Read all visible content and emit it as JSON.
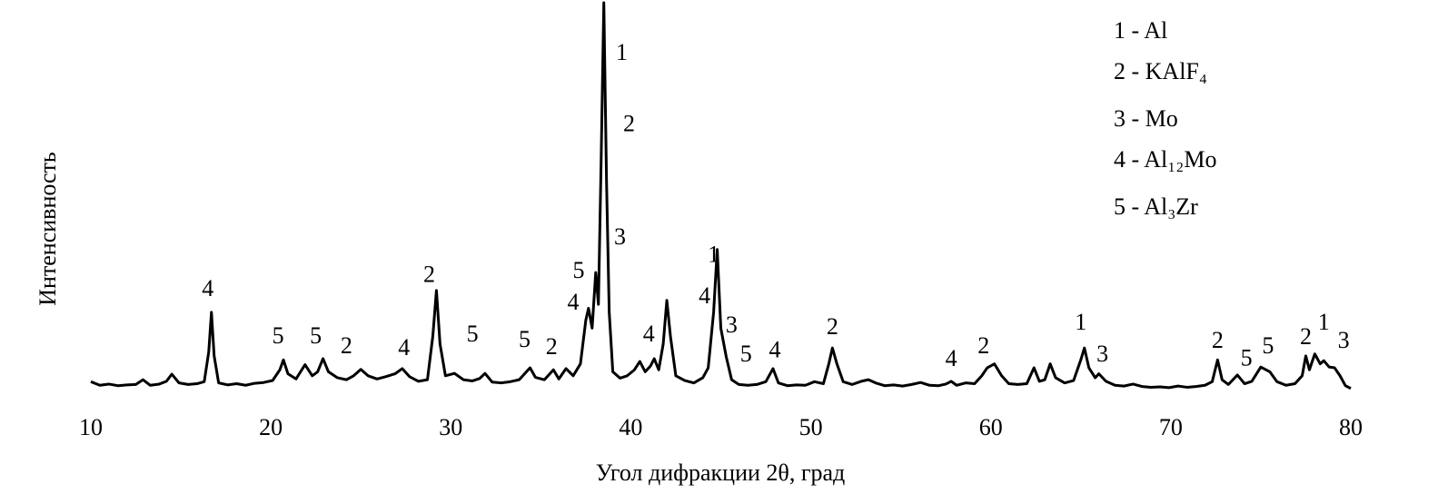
{
  "chart_data": {
    "type": "line",
    "color": "#000000",
    "x_label": "Угол дифракции 2θ, град",
    "y_label": "Интенсивность",
    "xlim": [
      10,
      80
    ],
    "xticks": [
      10,
      20,
      30,
      40,
      50,
      60,
      70,
      80
    ],
    "ylim": [
      0,
      100
    ],
    "legend": [
      "1 - Al",
      "2 - KAlF₄",
      "3 - Mo",
      "4 - Al₁₂Mo",
      "5 - Al₃Zr"
    ],
    "x": [
      10,
      10.5,
      11,
      11.5,
      12,
      12.5,
      12.9,
      13.3,
      13.8,
      14.2,
      14.5,
      14.9,
      15.4,
      15.9,
      16.3,
      16.55,
      16.7,
      16.85,
      17.1,
      17.6,
      18.1,
      18.6,
      19.1,
      19.6,
      20.1,
      20.5,
      20.7,
      20.95,
      21.4,
      21.9,
      22.3,
      22.6,
      22.9,
      23.2,
      23.7,
      24.2,
      24.6,
      25,
      25.4,
      25.9,
      26.4,
      26.9,
      27.3,
      27.7,
      28.2,
      28.7,
      29.0,
      29.2,
      29.4,
      29.7,
      30.2,
      30.7,
      31.2,
      31.6,
      31.9,
      32.3,
      32.8,
      33.3,
      33.8,
      34.2,
      34.4,
      34.7,
      35.2,
      35.7,
      36.0,
      36.4,
      36.8,
      37.2,
      37.5,
      37.65,
      37.85,
      38.05,
      38.2,
      38.35,
      38.5,
      38.65,
      38.8,
      39.0,
      39.4,
      39.8,
      40.2,
      40.5,
      40.8,
      41.1,
      41.3,
      41.55,
      41.8,
      42.0,
      42.2,
      42.5,
      43.0,
      43.5,
      44.0,
      44.3,
      44.6,
      44.8,
      45.0,
      45.3,
      45.6,
      46.0,
      46.5,
      47.0,
      47.5,
      47.9,
      48.2,
      48.7,
      49.2,
      49.7,
      50.2,
      50.7,
      51.0,
      51.2,
      51.45,
      51.8,
      52.3,
      52.8,
      53.2,
      53.6,
      54.1,
      54.6,
      55.1,
      55.6,
      56.1,
      56.6,
      57.1,
      57.5,
      57.8,
      58.1,
      58.6,
      59.1,
      59.5,
      59.8,
      60.2,
      60.6,
      61.0,
      61.5,
      62.0,
      62.4,
      62.7,
      63.0,
      63.3,
      63.6,
      64.1,
      64.6,
      65.0,
      65.2,
      65.45,
      65.8,
      66.0,
      66.4,
      66.9,
      67.4,
      67.9,
      68.4,
      68.9,
      69.4,
      69.9,
      70.4,
      70.9,
      71.4,
      71.9,
      72.3,
      72.6,
      72.85,
      73.2,
      73.7,
      74.1,
      74.5,
      75.0,
      75.5,
      75.9,
      76.4,
      76.9,
      77.3,
      77.5,
      77.7,
      78.0,
      78.3,
      78.5,
      78.8,
      79.1,
      79.4,
      79.7,
      80
    ],
    "values": [
      4.5,
      3.6,
      3.9,
      3.5,
      3.7,
      3.8,
      5.0,
      3.6,
      3.9,
      4.6,
      6.4,
      4.2,
      3.8,
      4.0,
      4.5,
      12,
      22,
      11,
      4.2,
      3.7,
      4.0,
      3.6,
      4.1,
      4.3,
      4.8,
      7.5,
      10,
      6.5,
      5.2,
      8.8,
      6.0,
      7.0,
      10.3,
      7.0,
      5.5,
      5.0,
      6.0,
      7.6,
      6.0,
      5.2,
      5.8,
      6.5,
      7.8,
      5.8,
      4.6,
      5.0,
      16,
      27.5,
      14,
      6.0,
      6.6,
      5.0,
      4.7,
      5.3,
      6.6,
      4.4,
      4.2,
      4.5,
      5.0,
      7.0,
      8.0,
      5.6,
      5.0,
      7.5,
      5.2,
      7.8,
      6.0,
      9,
      20,
      23,
      18,
      32,
      24,
      60,
      100,
      55,
      22,
      7.0,
      5.4,
      6.0,
      7.5,
      9.6,
      7.0,
      8.5,
      10.3,
      7.5,
      14,
      25,
      16,
      6.0,
      4.8,
      4.2,
      5.5,
      8,
      22,
      37.8,
      18,
      10.8,
      5.0,
      3.8,
      3.6,
      3.8,
      4.5,
      7.8,
      4.2,
      3.5,
      3.7,
      3.6,
      4.5,
      4.0,
      9,
      13,
      9,
      4.5,
      3.8,
      4.6,
      5.0,
      4.2,
      3.5,
      3.7,
      3.4,
      3.8,
      4.3,
      3.6,
      3.5,
      3.9,
      4.6,
      3.6,
      4.2,
      4.0,
      6.0,
      8.0,
      9.0,
      6.0,
      4.0,
      3.8,
      4.0,
      8.0,
      4.6,
      5.0,
      9.0,
      5.5,
      4.2,
      4.8,
      10,
      13,
      8,
      5.5,
      6.5,
      4.6,
      3.6,
      3.4,
      3.9,
      3.3,
      3.1,
      3.2,
      3.0,
      3.4,
      3.1,
      3.3,
      3.6,
      4.5,
      10,
      5.0,
      3.8,
      6.2,
      4.0,
      4.6,
      8.2,
      7.0,
      4.5,
      3.6,
      4.0,
      6,
      11,
      7.5,
      11.5,
      9.0,
      9.8,
      8.2,
      8.0,
      6.0,
      3.5,
      2.8
    ],
    "annotations": [
      {
        "text": "4",
        "x": 16.5,
        "y": 27.5
      },
      {
        "text": "5",
        "x": 20.4,
        "y": 15.6
      },
      {
        "text": "5",
        "x": 22.5,
        "y": 15.6
      },
      {
        "text": "2",
        "x": 24.2,
        "y": 13
      },
      {
        "text": "4",
        "x": 27.4,
        "y": 12.6
      },
      {
        "text": "2",
        "x": 28.8,
        "y": 31
      },
      {
        "text": "5",
        "x": 31.2,
        "y": 16
      },
      {
        "text": "5",
        "x": 34.1,
        "y": 14.6
      },
      {
        "text": "2",
        "x": 35.6,
        "y": 12.8
      },
      {
        "text": "4",
        "x": 36.8,
        "y": 24
      },
      {
        "text": "5",
        "x": 37.1,
        "y": 32
      },
      {
        "text": "1",
        "x": 39.5,
        "y": 87
      },
      {
        "text": "2",
        "x": 39.9,
        "y": 69
      },
      {
        "text": "3",
        "x": 39.4,
        "y": 40.5
      },
      {
        "text": "4",
        "x": 41.0,
        "y": 16
      },
      {
        "text": "4",
        "x": 44.1,
        "y": 25.6
      },
      {
        "text": "1",
        "x": 44.6,
        "y": 36
      },
      {
        "text": "3",
        "x": 45.6,
        "y": 18.3
      },
      {
        "text": "5",
        "x": 46.4,
        "y": 11
      },
      {
        "text": "4",
        "x": 48.0,
        "y": 12
      },
      {
        "text": "2",
        "x": 51.2,
        "y": 17.8
      },
      {
        "text": "4",
        "x": 57.8,
        "y": 9.8
      },
      {
        "text": "2",
        "x": 59.6,
        "y": 13
      },
      {
        "text": "1",
        "x": 65.0,
        "y": 19
      },
      {
        "text": "3",
        "x": 66.2,
        "y": 11
      },
      {
        "text": "2",
        "x": 72.6,
        "y": 14.4
      },
      {
        "text": "5",
        "x": 74.2,
        "y": 10
      },
      {
        "text": "5",
        "x": 75.4,
        "y": 13
      },
      {
        "text": "2",
        "x": 77.5,
        "y": 15.3
      },
      {
        "text": "1",
        "x": 78.5,
        "y": 19
      },
      {
        "text": "3",
        "x": 79.6,
        "y": 14.4
      }
    ]
  }
}
